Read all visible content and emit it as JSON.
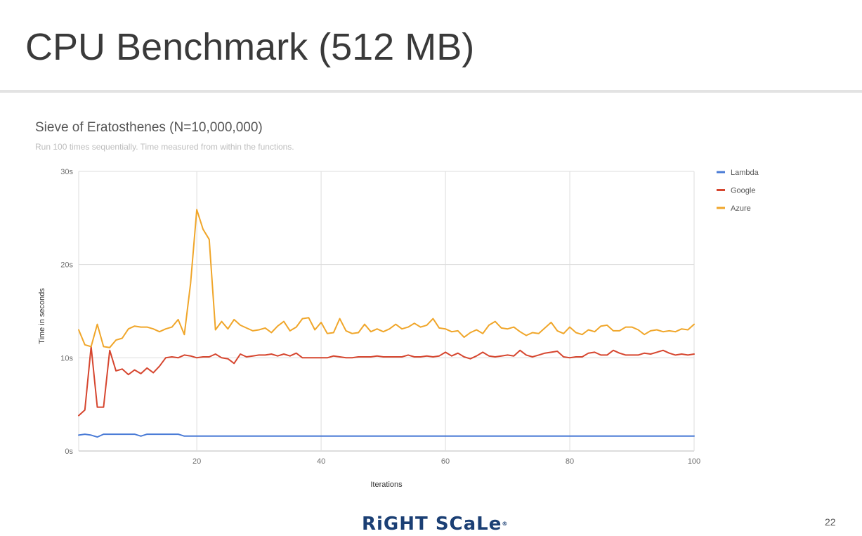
{
  "slide": {
    "title": "CPU Benchmark (512 MB)",
    "page_number": "22",
    "logo_text": "RiGHT SCaLe"
  },
  "chart_data": {
    "type": "line",
    "title": "Sieve of Eratosthenes (N=10,000,000)",
    "subtitle": "Run 100 times sequentially. Time measured from within the functions.",
    "xlabel": "Iterations",
    "ylabel": "Time in seconds",
    "xlim": [
      1,
      100
    ],
    "ylim": [
      0,
      30
    ],
    "x_ticks": [
      20,
      40,
      60,
      80,
      100
    ],
    "x_tick_labels": [
      "20",
      "40",
      "60",
      "80",
      "100"
    ],
    "y_ticks": [
      0,
      10,
      20,
      30
    ],
    "y_tick_labels": [
      "0s",
      "10s",
      "20s",
      "30s"
    ],
    "grid": true,
    "legend_position": "right",
    "x": [
      1,
      2,
      3,
      4,
      5,
      6,
      7,
      8,
      9,
      10,
      11,
      12,
      13,
      14,
      15,
      16,
      17,
      18,
      19,
      20,
      21,
      22,
      23,
      24,
      25,
      26,
      27,
      28,
      29,
      30,
      31,
      32,
      33,
      34,
      35,
      36,
      37,
      38,
      39,
      40,
      41,
      42,
      43,
      44,
      45,
      46,
      47,
      48,
      49,
      50,
      51,
      52,
      53,
      54,
      55,
      56,
      57,
      58,
      59,
      60,
      61,
      62,
      63,
      64,
      65,
      66,
      67,
      68,
      69,
      70,
      71,
      72,
      73,
      74,
      75,
      76,
      77,
      78,
      79,
      80,
      81,
      82,
      83,
      84,
      85,
      86,
      87,
      88,
      89,
      90,
      91,
      92,
      93,
      94,
      95,
      96,
      97,
      98,
      99,
      100
    ],
    "series": [
      {
        "name": "Lambda",
        "color": "#4a7bd6",
        "values": [
          1.7,
          1.8,
          1.7,
          1.5,
          1.8,
          1.8,
          1.8,
          1.8,
          1.8,
          1.8,
          1.6,
          1.8,
          1.8,
          1.8,
          1.8,
          1.8,
          1.8,
          1.6,
          1.6,
          1.6,
          1.6,
          1.6,
          1.6,
          1.6,
          1.6,
          1.6,
          1.6,
          1.6,
          1.6,
          1.6,
          1.6,
          1.6,
          1.6,
          1.6,
          1.6,
          1.6,
          1.6,
          1.6,
          1.6,
          1.6,
          1.6,
          1.6,
          1.6,
          1.6,
          1.6,
          1.6,
          1.6,
          1.6,
          1.6,
          1.6,
          1.6,
          1.6,
          1.6,
          1.6,
          1.6,
          1.6,
          1.6,
          1.6,
          1.6,
          1.6,
          1.6,
          1.6,
          1.6,
          1.6,
          1.6,
          1.6,
          1.6,
          1.6,
          1.6,
          1.6,
          1.6,
          1.6,
          1.6,
          1.6,
          1.6,
          1.6,
          1.6,
          1.6,
          1.6,
          1.6,
          1.6,
          1.6,
          1.6,
          1.6,
          1.6,
          1.6,
          1.6,
          1.6,
          1.6,
          1.6,
          1.6,
          1.6,
          1.6,
          1.6,
          1.6,
          1.6,
          1.6,
          1.6,
          1.6,
          1.6
        ]
      },
      {
        "name": "Google",
        "color": "#d6462f",
        "values": [
          3.8,
          4.4,
          11.2,
          4.7,
          4.7,
          10.8,
          8.6,
          8.8,
          8.2,
          8.7,
          8.3,
          8.9,
          8.4,
          9.1,
          10.0,
          10.1,
          10.0,
          10.3,
          10.2,
          10.0,
          10.1,
          10.1,
          10.4,
          10.0,
          9.9,
          9.4,
          10.4,
          10.1,
          10.2,
          10.3,
          10.3,
          10.4,
          10.2,
          10.4,
          10.2,
          10.5,
          10.0,
          10.0,
          10.0,
          10.0,
          10.0,
          10.2,
          10.1,
          10.0,
          10.0,
          10.1,
          10.1,
          10.1,
          10.2,
          10.1,
          10.1,
          10.1,
          10.1,
          10.3,
          10.1,
          10.1,
          10.2,
          10.1,
          10.2,
          10.6,
          10.2,
          10.5,
          10.1,
          9.9,
          10.2,
          10.6,
          10.2,
          10.1,
          10.2,
          10.3,
          10.2,
          10.8,
          10.3,
          10.1,
          10.3,
          10.5,
          10.6,
          10.7,
          10.1,
          10.0,
          10.1,
          10.1,
          10.5,
          10.6,
          10.3,
          10.3,
          10.8,
          10.5,
          10.3,
          10.3,
          10.3,
          10.5,
          10.4,
          10.6,
          10.8,
          10.5,
          10.3,
          10.4,
          10.3,
          10.4
        ]
      },
      {
        "name": "Azure",
        "color": "#f0a62a",
        "values": [
          13.0,
          11.4,
          11.2,
          13.6,
          11.2,
          11.1,
          11.9,
          12.1,
          13.1,
          13.4,
          13.3,
          13.3,
          13.1,
          12.8,
          13.1,
          13.3,
          14.1,
          12.5,
          18.0,
          25.9,
          23.8,
          22.7,
          13.0,
          13.9,
          13.1,
          14.1,
          13.5,
          13.2,
          12.9,
          13.0,
          13.2,
          12.7,
          13.4,
          13.9,
          12.9,
          13.3,
          14.2,
          14.3,
          13.0,
          13.8,
          12.6,
          12.7,
          14.2,
          12.9,
          12.6,
          12.7,
          13.6,
          12.8,
          13.1,
          12.8,
          13.1,
          13.6,
          13.1,
          13.3,
          13.7,
          13.3,
          13.5,
          14.2,
          13.2,
          13.1,
          12.8,
          12.9,
          12.2,
          12.7,
          13.0,
          12.6,
          13.5,
          13.9,
          13.2,
          13.1,
          13.3,
          12.8,
          12.4,
          12.7,
          12.6,
          13.2,
          13.8,
          12.9,
          12.6,
          13.3,
          12.7,
          12.5,
          13.0,
          12.8,
          13.4,
          13.5,
          12.9,
          12.9,
          13.3,
          13.3,
          13.0,
          12.5,
          12.9,
          13.0,
          12.8,
          12.9,
          12.8,
          13.1,
          13.0,
          13.6
        ]
      }
    ]
  }
}
